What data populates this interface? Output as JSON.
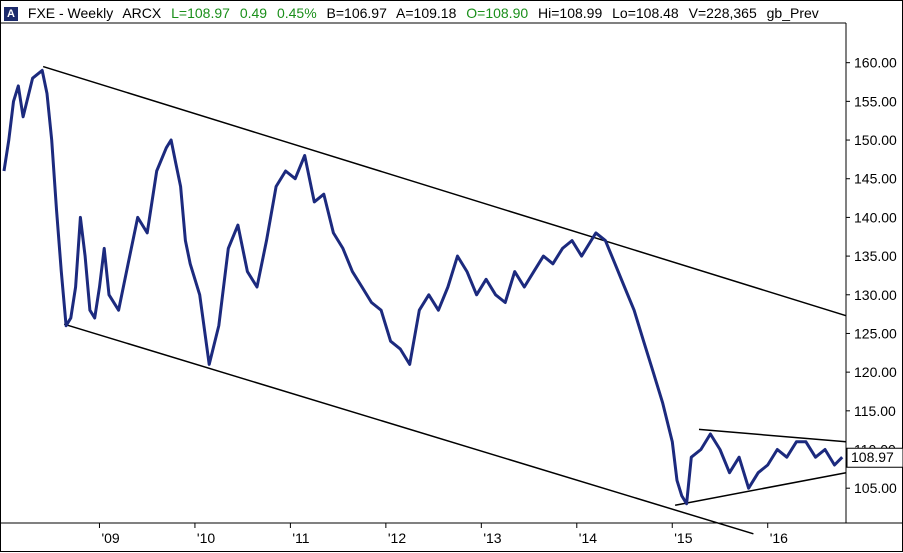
{
  "header": {
    "icon_glyph": "A",
    "symbol": "FXE - Weekly",
    "exchange": "ARCX",
    "last": "L=108.97",
    "change": "0.49",
    "change_pct": "0.45%",
    "bid": "B=106.97",
    "ask": "A=109.18",
    "open": "O=108.90",
    "high": "Hi=108.99",
    "low": "Lo=108.48",
    "volume": "V=228,365",
    "study": "gb_Prev",
    "positive_color": "#1a8f1a"
  },
  "chart_data": {
    "type": "line",
    "line_color": "#1c2a7e",
    "ylim": [
      100.5,
      165
    ],
    "y_ticks": [
      105,
      110,
      115,
      120,
      125,
      130,
      135,
      140,
      145,
      150,
      155,
      160
    ],
    "y_tick_labels": [
      "105.00",
      "110.00",
      "115.00",
      "120.00",
      "125.00",
      "130.00",
      "135.00",
      "140.00",
      "145.00",
      "150.00",
      "155.00",
      "160.00"
    ],
    "x_tick_labels": [
      "'09",
      "'10",
      "'11",
      "'12",
      "'13",
      "'14",
      "'15",
      "'16"
    ],
    "x_tick_years": [
      2009,
      2010,
      2011,
      2012,
      2013,
      2014,
      2015,
      2016
    ],
    "xlim": [
      2008.0,
      2016.82
    ],
    "last_value_label": "108.97",
    "series": [
      {
        "x": [
          2008.0,
          2008.05,
          2008.1,
          2008.15,
          2008.2,
          2008.3,
          2008.4,
          2008.45,
          2008.5,
          2008.55,
          2008.6,
          2008.65,
          2008.7,
          2008.75,
          2008.8,
          2008.85,
          2008.9,
          2008.95,
          2009.0,
          2009.05,
          2009.1,
          2009.2,
          2009.3,
          2009.4,
          2009.5,
          2009.6,
          2009.7,
          2009.75,
          2009.8,
          2009.85,
          2009.9,
          2009.95,
          2010.05,
          2010.15,
          2010.25,
          2010.35,
          2010.45,
          2010.55,
          2010.65,
          2010.75,
          2010.85,
          2010.95,
          2011.05,
          2011.15,
          2011.25,
          2011.35,
          2011.45,
          2011.55,
          2011.65,
          2011.75,
          2011.85,
          2011.95,
          2012.05,
          2012.15,
          2012.25,
          2012.35,
          2012.45,
          2012.55,
          2012.65,
          2012.75,
          2012.85,
          2012.95,
          2013.05,
          2013.15,
          2013.25,
          2013.35,
          2013.45,
          2013.55,
          2013.65,
          2013.75,
          2013.85,
          2013.95,
          2014.05,
          2014.15,
          2014.2,
          2014.3,
          2014.4,
          2014.5,
          2014.6,
          2014.7,
          2014.8,
          2014.9,
          2015.0,
          2015.05,
          2015.1,
          2015.15,
          2015.2,
          2015.3,
          2015.4,
          2015.5,
          2015.6,
          2015.7,
          2015.8,
          2015.9,
          2016.0,
          2016.1,
          2016.2,
          2016.3,
          2016.4,
          2016.5,
          2016.6,
          2016.7,
          2016.78
        ],
        "y": [
          146,
          150,
          155,
          157,
          153,
          158,
          159,
          156,
          150,
          141,
          133,
          126,
          127,
          131,
          140,
          135,
          128,
          127,
          131,
          136,
          130,
          128,
          134,
          140,
          138,
          146,
          149,
          150,
          147,
          144,
          137,
          134,
          130,
          121,
          126,
          136,
          139,
          133,
          131,
          137,
          144,
          146,
          145,
          148,
          142,
          143,
          138,
          136,
          133,
          131,
          129,
          128,
          124,
          123,
          121,
          128,
          130,
          128,
          131,
          135,
          133,
          130,
          132,
          130,
          129,
          133,
          131,
          133,
          135,
          134,
          136,
          137,
          135,
          137,
          138,
          137,
          134,
          131,
          128,
          124,
          120,
          116,
          111,
          106,
          104,
          103,
          109,
          110,
          112,
          110,
          107,
          109,
          105,
          107,
          108,
          110,
          109,
          111,
          111,
          109,
          110,
          108,
          109
        ]
      }
    ],
    "trendlines": [
      {
        "x": [
          2008.41,
          2016.82
        ],
        "y": [
          159.5,
          127.3
        ]
      },
      {
        "x": [
          2008.63,
          2015.85
        ],
        "y": [
          126.2,
          99.1
        ]
      },
      {
        "x": [
          2015.03,
          2016.82
        ],
        "y": [
          102.8,
          107.0
        ]
      },
      {
        "x": [
          2015.28,
          2016.82
        ],
        "y": [
          112.6,
          111.0
        ]
      }
    ]
  }
}
